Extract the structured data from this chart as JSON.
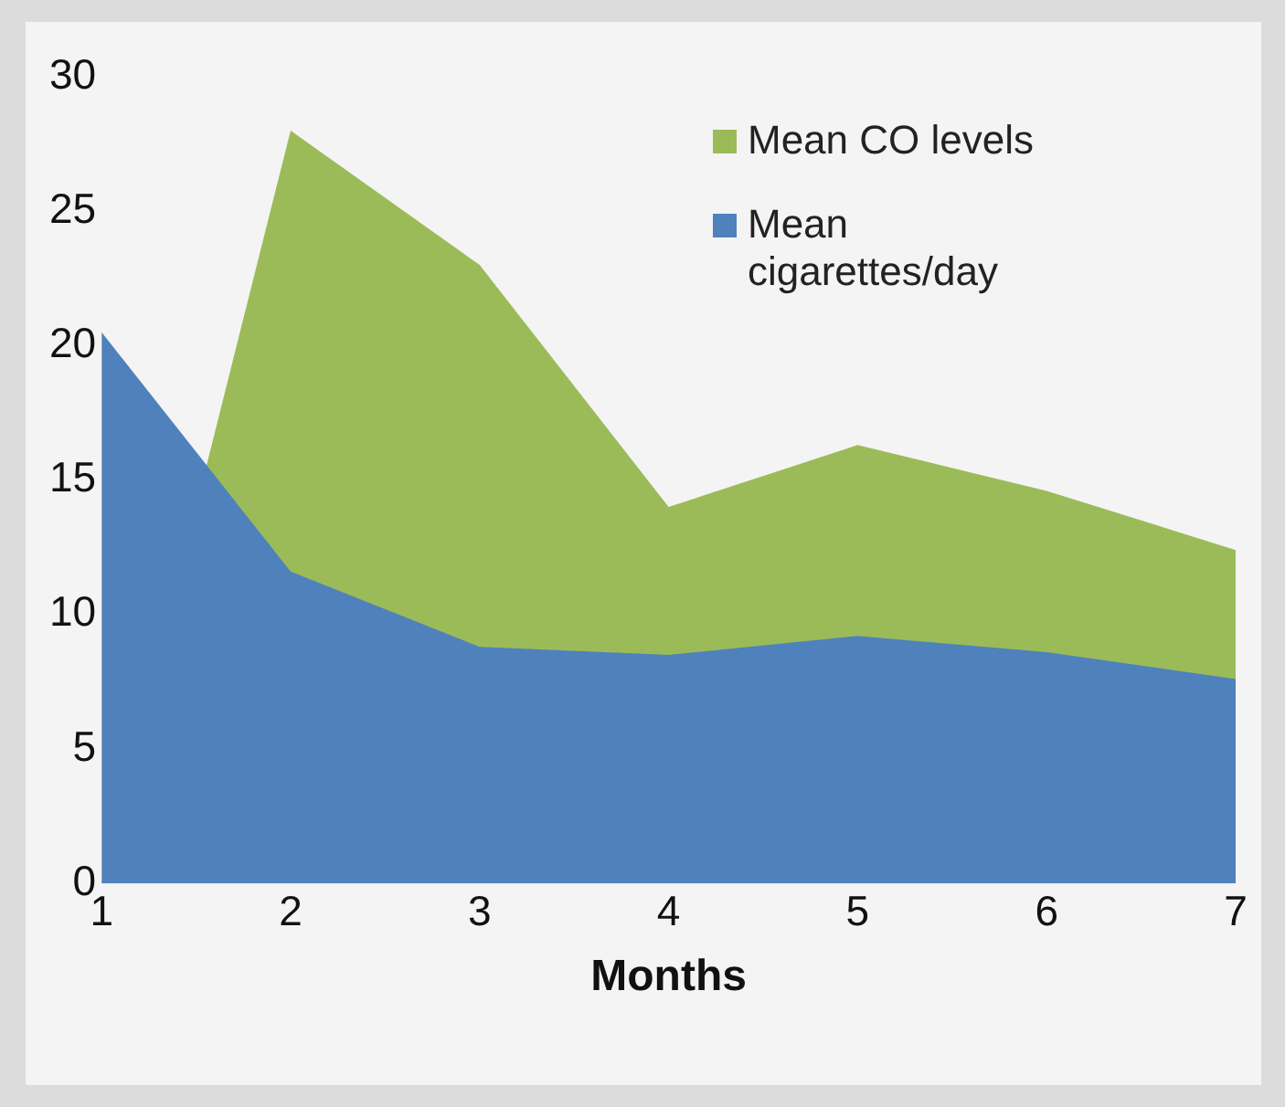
{
  "chart_data": {
    "type": "area",
    "xlabel": "Months",
    "x": [
      1,
      2,
      3,
      4,
      5,
      6,
      7
    ],
    "series": [
      {
        "name": "Mean CO levels",
        "color": "#9bbb59",
        "values": [
          0,
          28,
          23,
          14,
          16.3,
          14.6,
          12.4
        ]
      },
      {
        "name": "Mean cigarettes/day",
        "color": "#4f81bd",
        "values": [
          20.5,
          11.6,
          8.8,
          8.5,
          9.2,
          8.6,
          7.6
        ]
      }
    ],
    "xlim": [
      1,
      7
    ],
    "xticks": [
      1,
      2,
      3,
      4,
      5,
      6,
      7
    ],
    "ylim": [
      0,
      30
    ],
    "yticks": [
      0,
      5,
      10,
      15,
      20,
      25,
      30
    ],
    "grid": false,
    "legend": "top right"
  }
}
